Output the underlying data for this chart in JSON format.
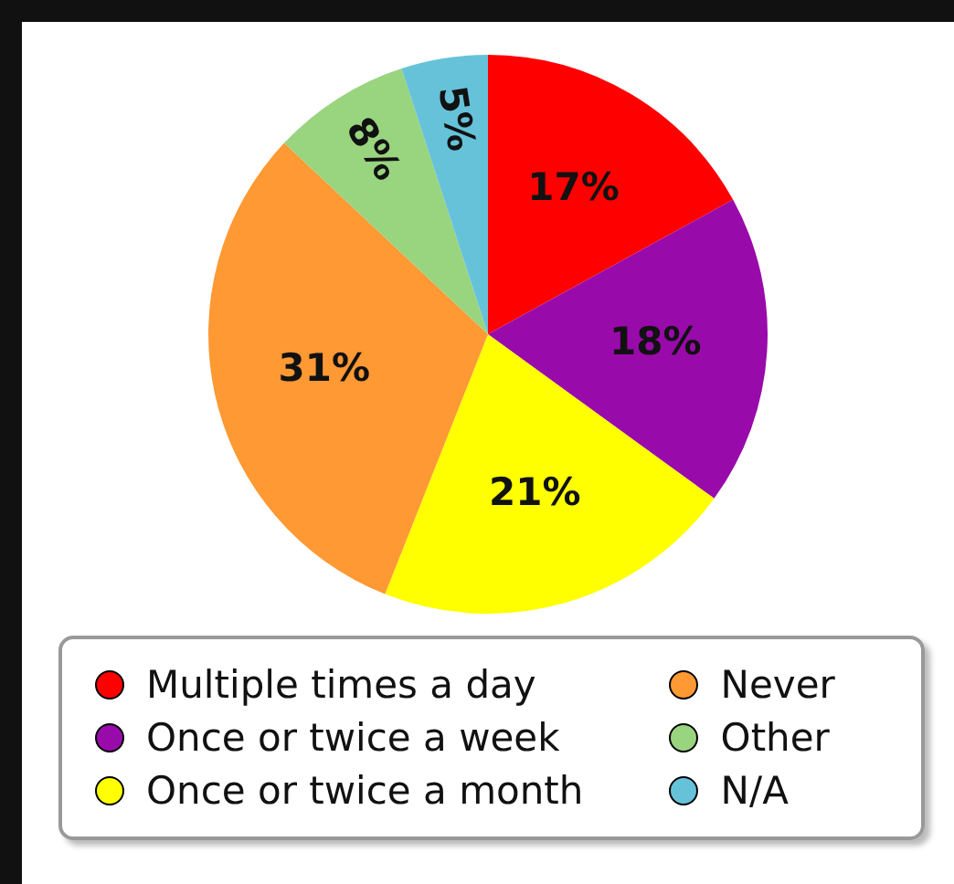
{
  "chart_data": {
    "type": "pie",
    "categories": [
      "Multiple times a day",
      "Once or twice a week",
      "Once or twice a month",
      "Never",
      "Other",
      "N/A"
    ],
    "values": [
      17,
      18,
      21,
      31,
      8,
      5
    ],
    "colors": [
      "#ff0000",
      "#990aaa",
      "#ffff00",
      "#ff9933",
      "#99d47f",
      "#66c2d9"
    ],
    "value_labels": [
      "17%",
      "18%",
      "21%",
      "31%",
      "8%",
      "5%"
    ],
    "legend": "bottom"
  }
}
